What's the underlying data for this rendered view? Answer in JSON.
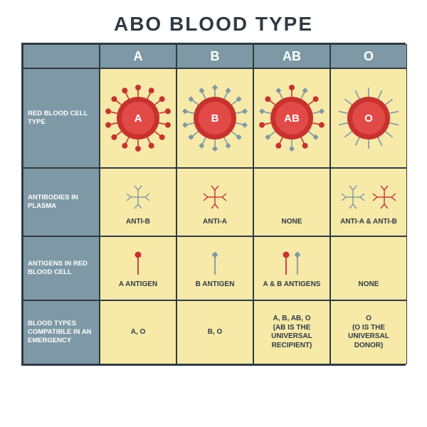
{
  "title": "ABO   BLOOD   TYPE",
  "colors": {
    "header_bg": "#7e98a5",
    "rowlabel_bg": "#7e98a5",
    "cell_bg": "#f7e9a8",
    "border": "#2f3b44",
    "title": "#2f3b44",
    "cell_outer": "#c7322f",
    "cell_inner": "#e24a47",
    "antigen_a": "#c7322f",
    "antigen_b": "#7e98a5",
    "antigen_o": "#7e98a5",
    "anti_a_body": "#c7322f",
    "anti_b_body": "#7e98a5",
    "text_on_cell": "#ffffff"
  },
  "headers": [
    "A",
    "B",
    "AB",
    "O"
  ],
  "row_labels": [
    "RED BLOOD CELL TYPE",
    "ANTIBODIES IN PLASMA",
    "ANTIGENS IN RED BLOOD CELL",
    "BLOOD TYPES COMPATIBLE IN AN EMERGENCY"
  ],
  "rbc": {
    "A": {
      "label": "A",
      "antigens": "A"
    },
    "B": {
      "label": "B",
      "antigens": "B"
    },
    "AB": {
      "label": "AB",
      "antigens": "AB"
    },
    "O": {
      "label": "O",
      "antigens": "O"
    }
  },
  "antibodies": {
    "A": {
      "label": "ANTI-B",
      "types": [
        "B"
      ]
    },
    "B": {
      "label": "ANTI-A",
      "types": [
        "A"
      ]
    },
    "AB": {
      "label": "NONE",
      "types": []
    },
    "O": {
      "label": "ANTI-A & ANTI-B",
      "types": [
        "B",
        "A"
      ]
    }
  },
  "antigens": {
    "A": {
      "label": "A ANTIGEN",
      "types": [
        "A"
      ]
    },
    "B": {
      "label": "B ANTIGEN",
      "types": [
        "B"
      ]
    },
    "AB": {
      "label": "A & B ANTIGENS",
      "types": [
        "A",
        "B"
      ]
    },
    "O": {
      "label": "NONE",
      "types": []
    }
  },
  "compat": {
    "A": "A, O",
    "B": "B, O",
    "AB": "A, B, AB, O\n(AB  IS THE UNIVERSAL RECIPIENT)",
    "O": "O\n(O IS THE UNIVERSAL DONOR)"
  },
  "style": {
    "title_fontsize": 28,
    "header_fontsize": 18,
    "rowlabel_fontsize": 9.5,
    "celltext_fontsize": 10,
    "rbc_outer_radius": 30,
    "rbc_inner_radius": 23,
    "antigen_count": 14,
    "antigen_stem_len": 13,
    "antigen_marker_r": 4
  }
}
